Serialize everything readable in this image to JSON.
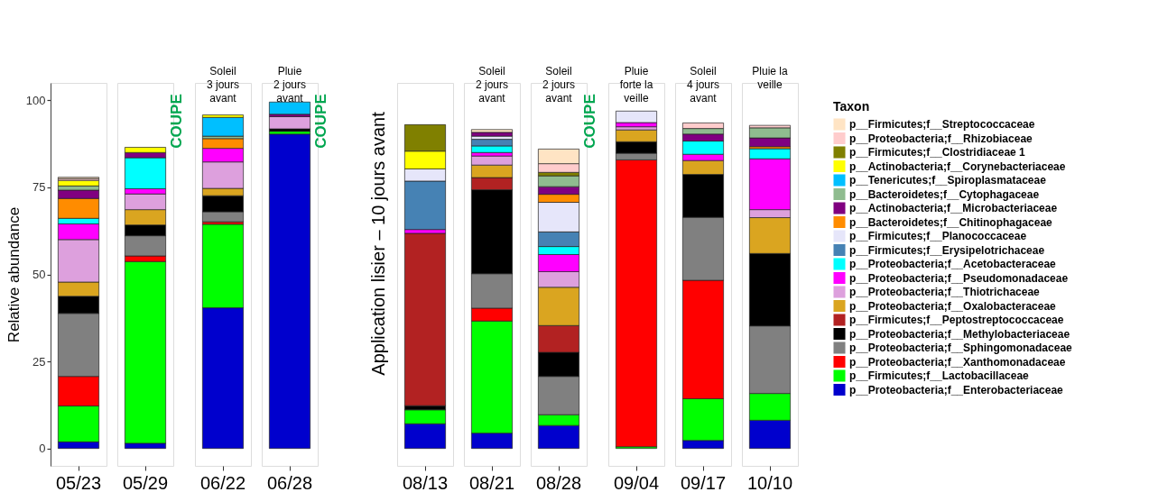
{
  "chart_data": {
    "type": "bar",
    "stacked": true,
    "ylabel": "Relative abundance",
    "legend_title": "Taxon",
    "legend": "right",
    "grid": false,
    "ylim": [
      -5,
      105
    ],
    "yticks": [
      0,
      25,
      50,
      75,
      100
    ],
    "categories": [
      "05/23",
      "05/29",
      "06/22",
      "06/28",
      "08/13",
      "08/21",
      "08/28",
      "09/04",
      "09/17",
      "10/10"
    ],
    "series": [
      {
        "name": "p__Proteobacteria;f__Enterobacteriaceae",
        "color": "#0000cd",
        "values": [
          1.9,
          1.5,
          40.4,
          90.3,
          7.1,
          4.4,
          6.6,
          null,
          2.3,
          8.1
        ]
      },
      {
        "name": "p__Firmicutes;f__Lactobacillaceae",
        "color": "#00ff00",
        "values": [
          10.3,
          52.2,
          24.0,
          0.8,
          4.0,
          32.2,
          3.1,
          0.5,
          12.0,
          7.7
        ]
      },
      {
        "name": "p__Proteobacteria;f__Xanthomonadaceae",
        "color": "#ff0000",
        "values": [
          8.5,
          1.6,
          0.7,
          null,
          null,
          3.7,
          null,
          82.4,
          34.0,
          null
        ]
      },
      {
        "name": "p__Proteobacteria;f__Sphingomonadaceae",
        "color": "#808080",
        "values": [
          18.1,
          5.8,
          2.9,
          null,
          null,
          9.9,
          11.0,
          1.9,
          18.1,
          19.4
        ]
      },
      {
        "name": "p__Proteobacteria;f__Methylobacteriaceae",
        "color": "#000000",
        "values": [
          4.9,
          3.1,
          4.6,
          0.7,
          1.2,
          24.1,
          6.9,
          3.3,
          12.3,
          20.8
        ]
      },
      {
        "name": "p__Firmicutes;f__Peptostreptococcaceae",
        "color": "#b22222",
        "values": [
          null,
          null,
          null,
          null,
          49.5,
          3.5,
          7.7,
          null,
          null,
          null
        ]
      },
      {
        "name": "p__Proteobacteria;f__Oxalobacteraceae",
        "color": "#daa520",
        "values": [
          4.1,
          4.4,
          2.1,
          null,
          null,
          3.6,
          11.0,
          3.4,
          4.0,
          10.3
        ]
      },
      {
        "name": "p__Proteobacteria;f__Thiotrichaceae",
        "color": "#dda0dd",
        "values": [
          12.2,
          4.5,
          7.6,
          3.5,
          null,
          2.6,
          4.5,
          0.9,
          null,
          2.3
        ]
      },
      {
        "name": "p__Proteobacteria;f__Pseudomonadaceae",
        "color": "#ff00ff",
        "values": [
          4.5,
          1.5,
          3.9,
          null,
          1.1,
          1.0,
          4.9,
          1.2,
          1.8,
          14.6
        ]
      },
      {
        "name": "p__Proteobacteria;f__Acetobacteraceae",
        "color": "#00ffff",
        "values": [
          1.6,
          8.9,
          null,
          null,
          null,
          1.9,
          2.3,
          null,
          3.8,
          2.9
        ]
      },
      {
        "name": "p__Firmicutes;f__Erysipelotrichaceae",
        "color": "#4682b4",
        "values": [
          null,
          null,
          null,
          null,
          13.9,
          1.9,
          4.2,
          null,
          null,
          null
        ]
      },
      {
        "name": "p__Firmicutes;f__Planococcaceae",
        "color": "#e6e6fa",
        "values": [
          null,
          null,
          null,
          null,
          3.5,
          0.9,
          8.5,
          3.3,
          null,
          null
        ]
      },
      {
        "name": "p__Bacteroidetes;f__Chitinophagaceae",
        "color": "#ff8c00",
        "values": [
          5.7,
          null,
          2.8,
          null,
          null,
          null,
          2.3,
          null,
          null,
          0.6
        ]
      },
      {
        "name": "p__Actinobacteria;f__Microbacteriaceae",
        "color": "#800080",
        "values": [
          2.4,
          1.5,
          null,
          0.7,
          null,
          1.1,
          2.2,
          null,
          2.0,
          2.5
        ]
      },
      {
        "name": "p__Bacteroidetes;f__Cytophagaceae",
        "color": "#8fbc8f",
        "values": [
          1.2,
          null,
          0.7,
          null,
          null,
          null,
          3.1,
          null,
          1.6,
          2.9
        ]
      },
      {
        "name": "p__Tenericutes;f__Spiroplasmataceae",
        "color": "#00bfff",
        "values": [
          null,
          null,
          5.4,
          3.5,
          null,
          null,
          null,
          null,
          null,
          null
        ]
      },
      {
        "name": "p__Actinobacteria;f__Corynebacteriaceae",
        "color": "#ffff00",
        "values": [
          1.6,
          1.5,
          0.7,
          null,
          5.1,
          null,
          null,
          null,
          null,
          null
        ]
      },
      {
        "name": "p__Firmicutes;f__Clostridiaceae 1",
        "color": "#808000",
        "values": [
          null,
          null,
          null,
          null,
          7.6,
          null,
          1.0,
          null,
          null,
          null
        ]
      },
      {
        "name": "p__Proteobacteria;f__Rhizobiaceae",
        "color": "#ffcccc",
        "values": [
          0.5,
          null,
          null,
          null,
          null,
          null,
          2.5,
          null,
          1.6,
          0.7
        ]
      },
      {
        "name": "p__Firmicutes;f__Streptococcaceae",
        "color": "#ffe4c4",
        "values": [
          0.4,
          null,
          null,
          null,
          null,
          0.8,
          4.2,
          null,
          null,
          null
        ]
      }
    ],
    "annotations": [
      "Soleil\n3 jours\navant",
      "Pluie\n2 jours\navant",
      "Soleil\n2 jours\navant",
      "Soleil\n2 jours\navant",
      "Pluie\nforte la\nveille",
      "Soleil\n4 jours\navant",
      "Pluie la\nveille",
      "COUPE",
      "COUPE",
      "COUPE",
      "Application lisier – 10 jours avant"
    ]
  }
}
